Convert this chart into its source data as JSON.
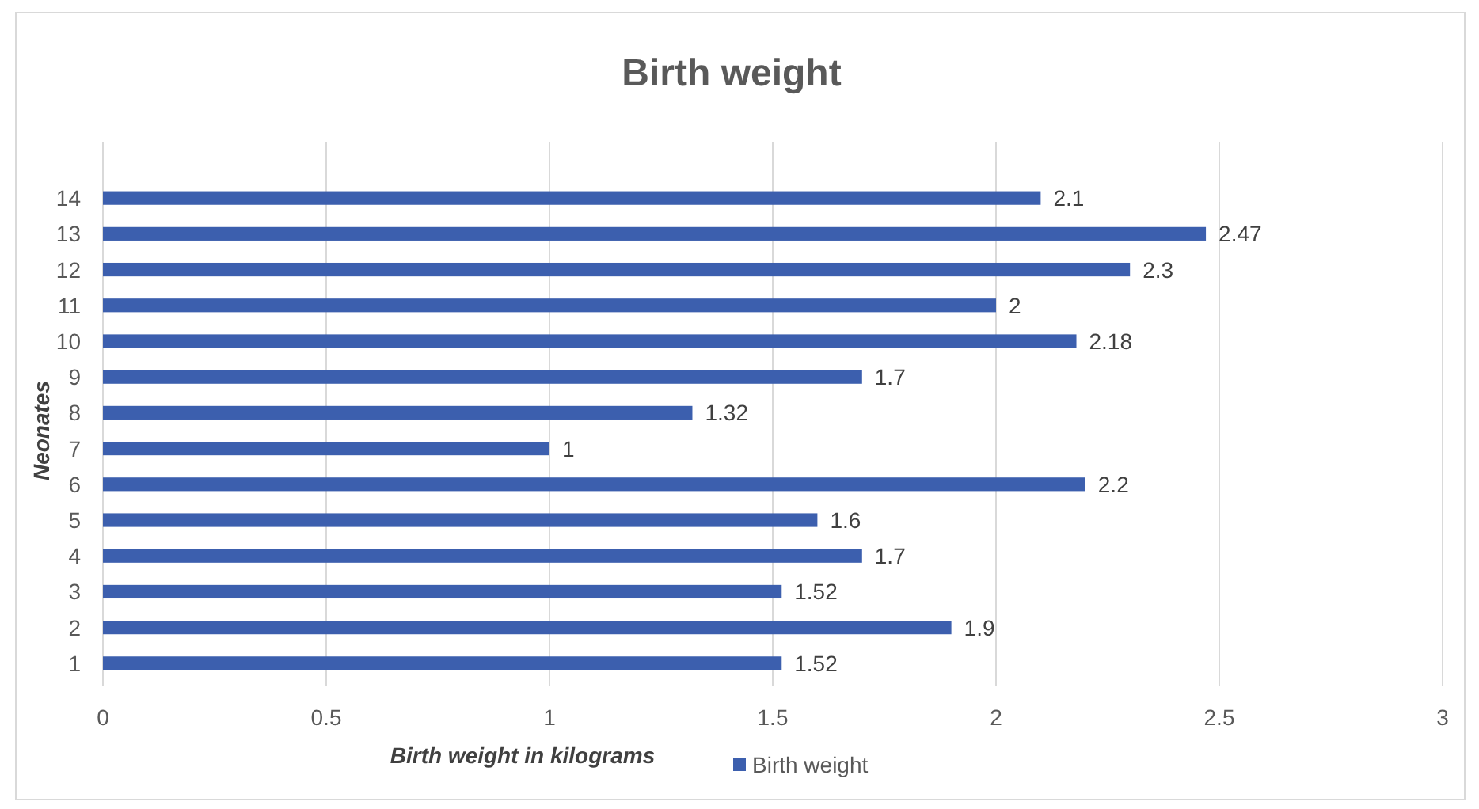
{
  "chart_data": {
    "type": "bar",
    "orientation": "horizontal",
    "title": "Birth weight",
    "xlabel": "Birth weight in kilograms",
    "ylabel": "Neonates",
    "categories": [
      "14",
      "13",
      "12",
      "11",
      "10",
      "9",
      "8",
      "7",
      "6",
      "5",
      "4",
      "3",
      "2",
      "1"
    ],
    "series": [
      {
        "name": "Birth weight",
        "color": "#3c5fae",
        "values": [
          2.1,
          2.47,
          2.3,
          2,
          2.18,
          1.7,
          1.32,
          1,
          2.2,
          1.6,
          1.7,
          1.52,
          1.9,
          1.52
        ]
      }
    ],
    "xlim": [
      0,
      3
    ],
    "xticks": [
      0,
      0.5,
      1,
      1.5,
      2,
      2.5,
      3
    ],
    "grid": "x",
    "legend": "bottom",
    "data_labels": true
  }
}
